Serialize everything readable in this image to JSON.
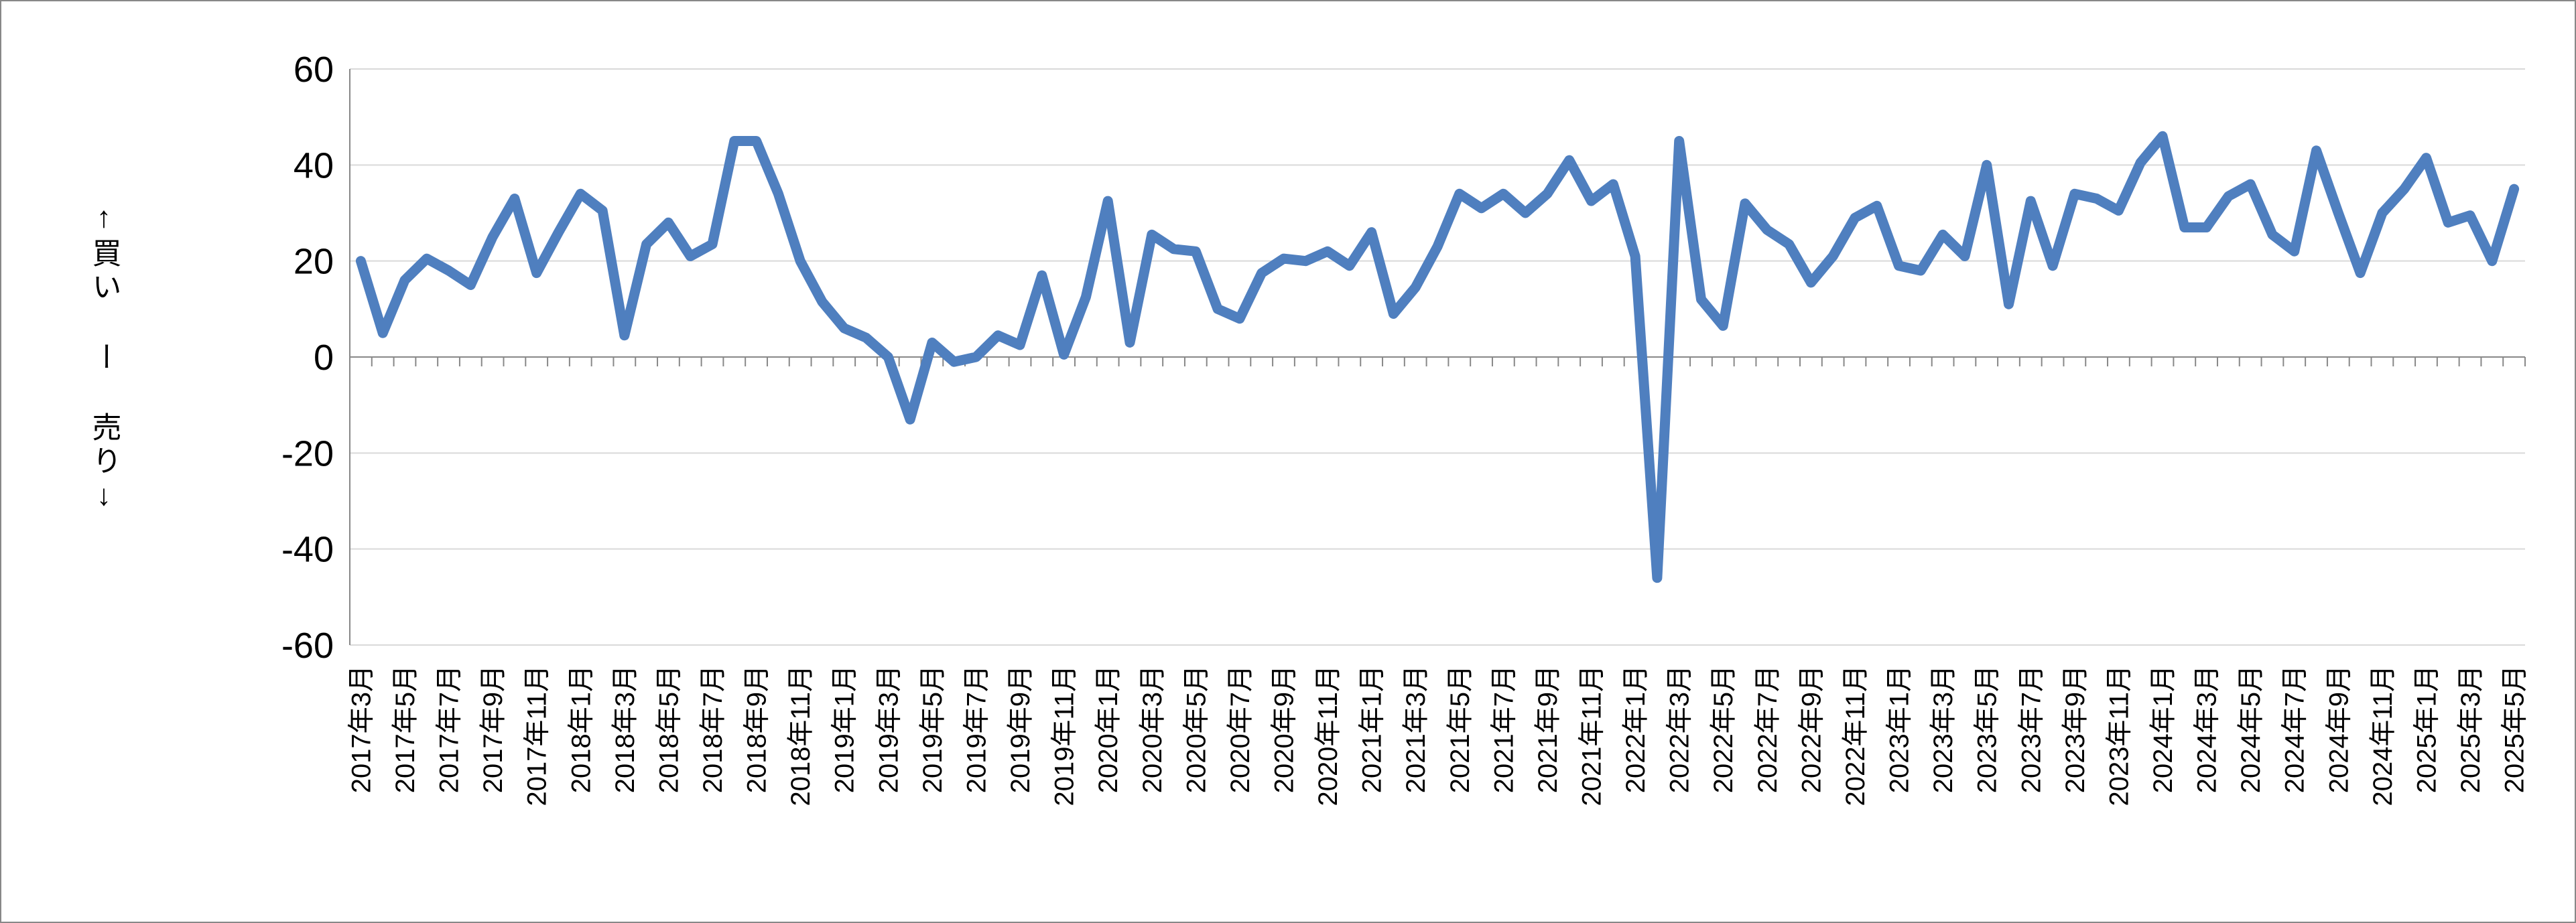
{
  "chart_data": {
    "type": "line",
    "y_label": "↑買い ー 売り↓",
    "categories": [
      "2017年3月",
      null,
      "2017年5月",
      null,
      "2017年7月",
      null,
      "2017年9月",
      null,
      "2017年11月",
      null,
      "2018年1月",
      null,
      "2018年3月",
      null,
      "2018年5月",
      null,
      "2018年7月",
      null,
      "2018年9月",
      null,
      "2018年11月",
      null,
      "2019年1月",
      null,
      "2019年3月",
      null,
      "2019年5月",
      null,
      "2019年7月",
      null,
      "2019年9月",
      null,
      "2019年11月",
      null,
      "2020年1月",
      null,
      "2020年3月",
      null,
      "2020年5月",
      null,
      "2020年7月",
      null,
      "2020年9月",
      null,
      "2020年11月",
      null,
      "2021年1月",
      null,
      "2021年3月",
      null,
      "2021年5月",
      null,
      "2021年7月",
      null,
      "2021年9月",
      null,
      "2021年11月",
      null,
      "2022年1月",
      null,
      "2022年3月",
      null,
      "2022年5月",
      null,
      "2022年7月",
      null,
      "2022年9月",
      null,
      "2022年11月",
      null,
      "2023年1月",
      null,
      "2023年3月",
      null,
      "2023年5月",
      null,
      "2023年7月",
      null,
      "2023年9月",
      null,
      "2023年11月",
      null,
      "2024年1月",
      null,
      "2024年3月",
      null,
      "2024年5月",
      null,
      "2024年7月",
      null,
      "2024年9月",
      null,
      "2024年11月",
      null,
      "2025年1月",
      null,
      "2025年3月",
      null,
      "2025年5月"
    ],
    "series": [
      {
        "color": "#4f7fbf",
        "values": [
          20,
          5,
          16,
          20.5,
          18,
          15,
          25,
          33,
          17.5,
          26,
          34,
          30.5,
          4.5,
          23.5,
          28,
          21,
          23.5,
          45,
          45,
          34,
          20,
          11.5,
          6,
          4,
          0,
          -13,
          3,
          -1,
          0,
          4.5,
          2.5,
          17,
          0.5,
          12.5,
          32.5,
          3,
          25.5,
          22.5,
          22,
          10,
          8,
          17.5,
          20.5,
          20,
          22,
          19,
          26,
          9,
          14.5,
          23,
          34,
          31,
          34,
          30,
          34,
          41,
          32.5,
          36,
          21,
          -46,
          45,
          12,
          6.5,
          32,
          26.5,
          23.5,
          15.5,
          21,
          29,
          31.5,
          19,
          18,
          25.5,
          21,
          40,
          11,
          32.5,
          19,
          34,
          33,
          30.5,
          40.5,
          46,
          27,
          27,
          33.5,
          36,
          25.5,
          22,
          43,
          30,
          17.5,
          30,
          35,
          41.5,
          28,
          29.5,
          20,
          35
        ]
      }
    ],
    "ylim": [
      -60,
      60
    ],
    "yticks": [
      -60,
      -40,
      -20,
      0,
      20,
      40,
      60
    ],
    "grid": true
  }
}
